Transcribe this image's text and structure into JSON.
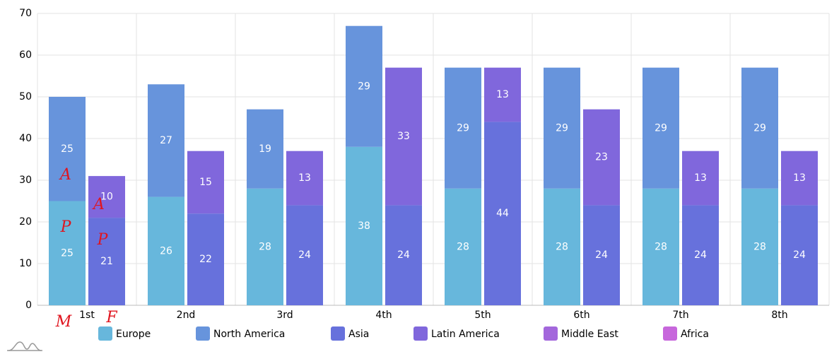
{
  "chart_data": {
    "type": "bar",
    "categories": [
      "1st",
      "2nd",
      "3rd",
      "4th",
      "5th",
      "6th",
      "7th",
      "8th"
    ],
    "series": [
      {
        "name": "Europe",
        "color": "#67b7dc",
        "stacked": false,
        "values": [
          25,
          26,
          28,
          38,
          28,
          28,
          28,
          28
        ]
      },
      {
        "name": "North America",
        "color": "#6794dc",
        "stacked": true,
        "values": [
          25,
          27,
          19,
          29,
          29,
          29,
          29,
          29
        ]
      },
      {
        "name": "Asia",
        "color": "#6771dc",
        "stacked": false,
        "values": [
          21,
          22,
          24,
          24,
          44,
          24,
          24,
          24
        ]
      },
      {
        "name": "Latin America",
        "color": "#8067dc",
        "stacked": true,
        "values": [
          10,
          15,
          13,
          33,
          13,
          23,
          13,
          13
        ]
      },
      {
        "name": "Middle East",
        "color": "#a367dc",
        "stacked": true,
        "values": [
          null,
          null,
          null,
          null,
          null,
          null,
          null,
          null
        ]
      },
      {
        "name": "Africa",
        "color": "#c767dc",
        "stacked": true,
        "values": [
          null,
          null,
          null,
          null,
          null,
          null,
          null,
          null
        ]
      }
    ],
    "ylim": [
      0,
      70
    ],
    "yticks": [
      0,
      10,
      20,
      30,
      40,
      50,
      60,
      70
    ],
    "grid": true,
    "legend": "bottom",
    "annotations": [
      "A",
      "A",
      "P",
      "P",
      "M",
      "F"
    ]
  }
}
